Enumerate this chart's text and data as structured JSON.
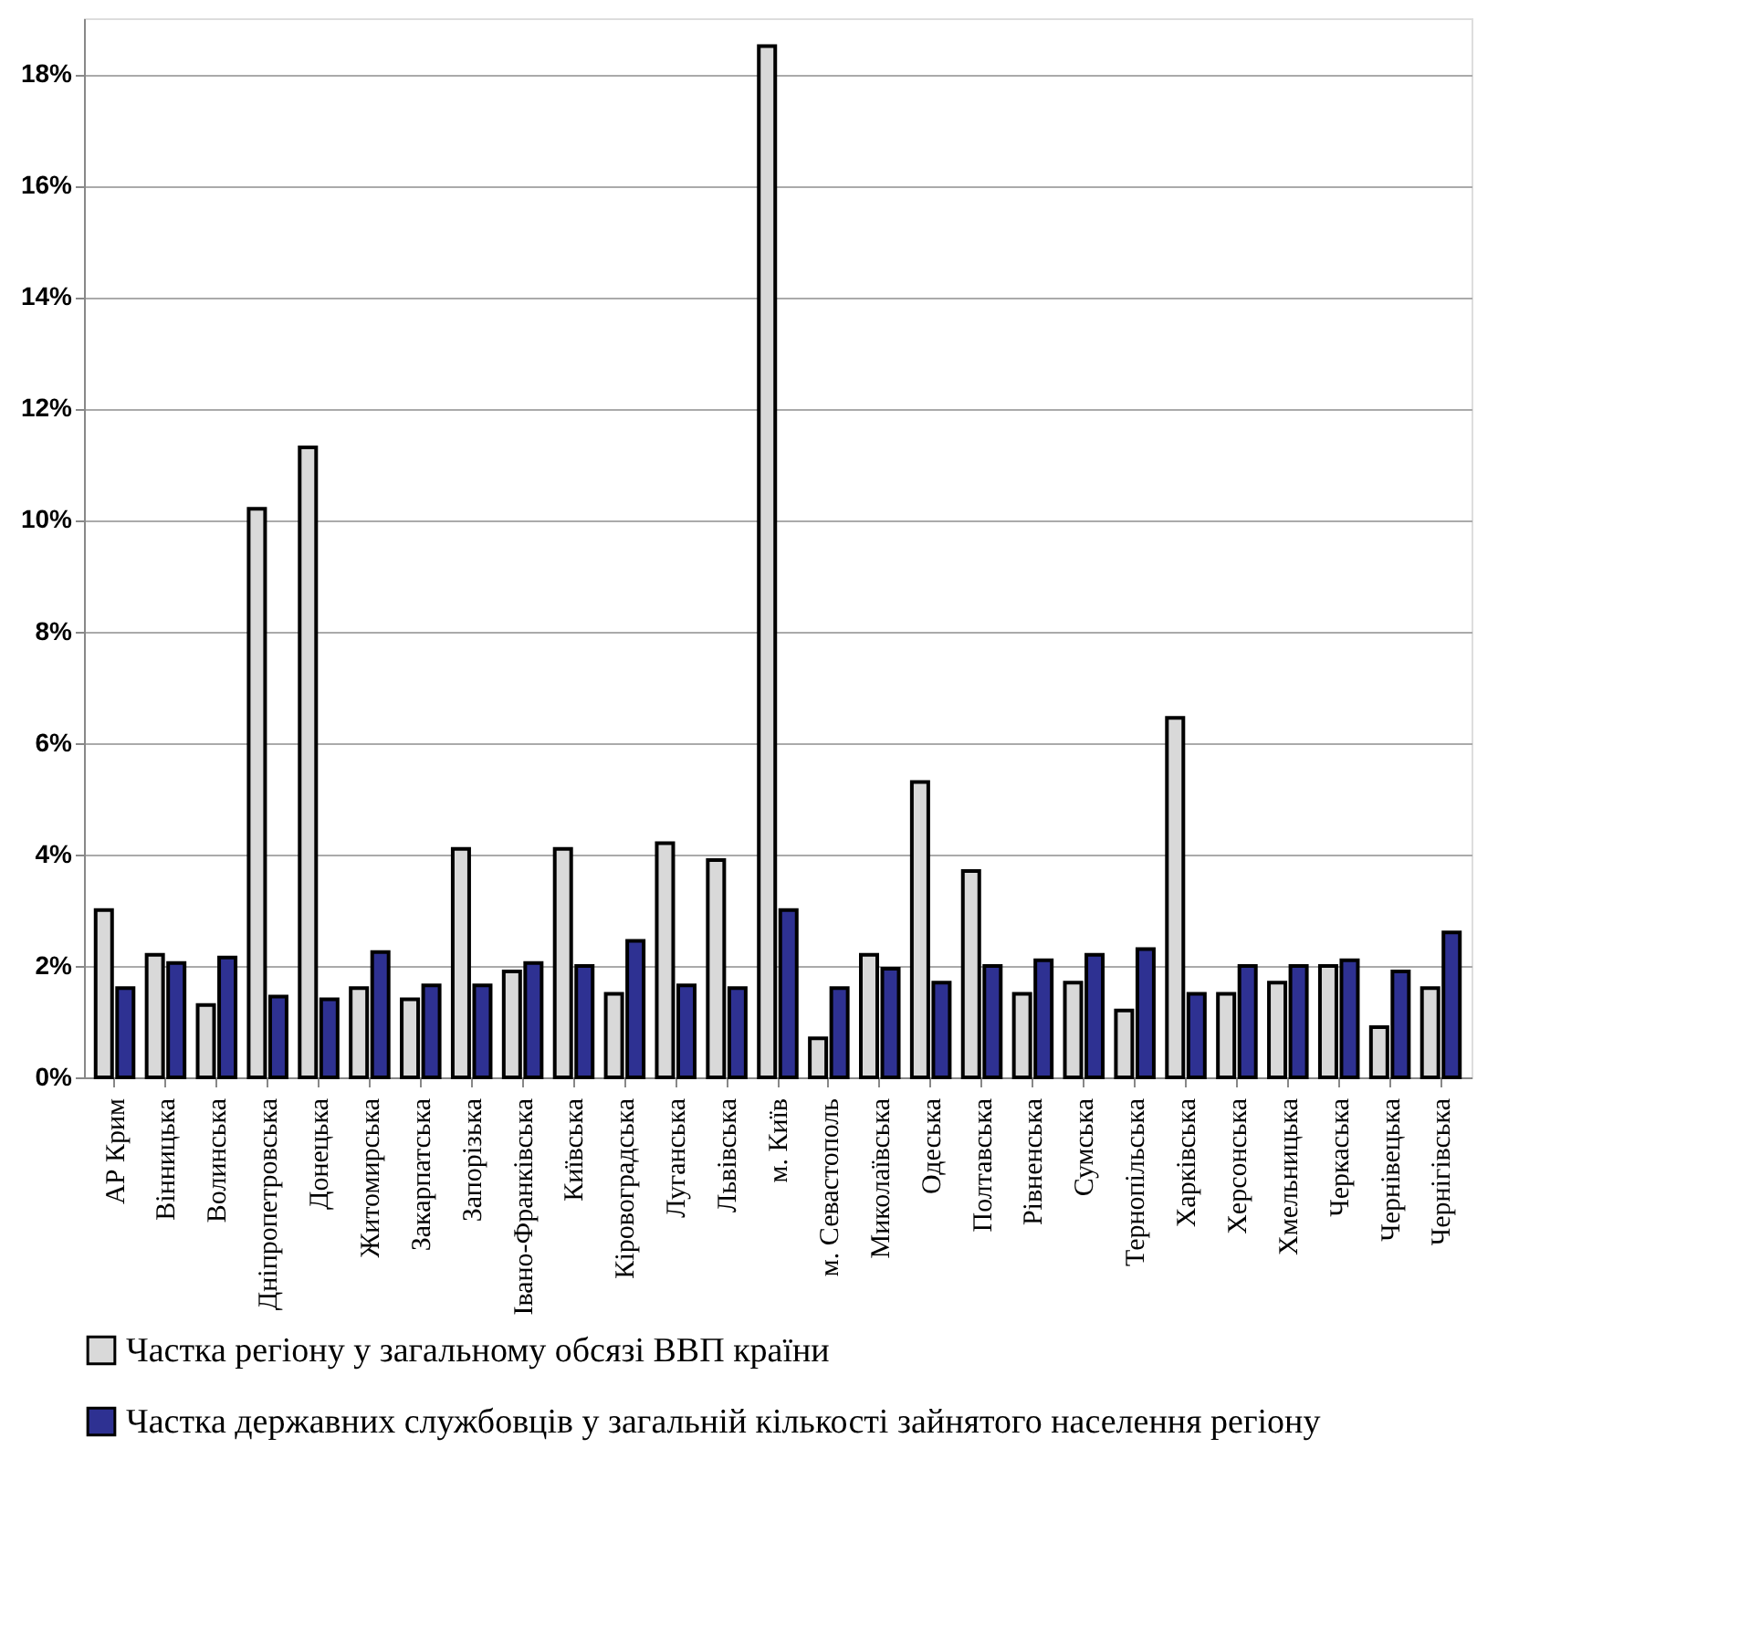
{
  "chart_data": {
    "type": "bar",
    "categories": [
      "АР Крим",
      "Вінницька",
      "Волинська",
      "Дніпропетровська",
      "Донецька",
      "Житомирська",
      "Закарпатська",
      "Запорізька",
      "Івано-Франківська",
      "Київська",
      "Кіровоградська",
      "Луганська",
      "Львівська",
      "м. Київ",
      "м. Севастополь",
      "Миколаївська",
      "Одеська",
      "Полтавська",
      "Рівненська",
      "Сумська",
      "Тернопільська",
      "Харківська",
      "Херсонська",
      "Хмельницька",
      "Черкаська",
      "Чернівецька",
      "Чернігівська"
    ],
    "series": [
      {
        "name": "Частка регіону у загальному обсязі ВВП країни",
        "color": "#d9d9d9",
        "values": [
          3.0,
          2.2,
          1.3,
          10.2,
          11.3,
          1.6,
          1.4,
          4.1,
          1.9,
          4.1,
          1.5,
          4.2,
          3.9,
          18.5,
          0.7,
          2.2,
          5.3,
          3.7,
          1.5,
          1.7,
          1.2,
          6.45,
          1.5,
          1.7,
          2.0,
          0.9,
          1.6
        ]
      },
      {
        "name": "Частка державних службовців у загальній кількості зайнятого населення регіону",
        "color": "#2e3192",
        "values": [
          1.6,
          2.05,
          2.15,
          1.45,
          1.4,
          2.25,
          1.65,
          1.65,
          2.05,
          2.0,
          2.45,
          1.65,
          1.6,
          3.0,
          1.6,
          1.95,
          1.7,
          2.0,
          2.1,
          2.2,
          2.3,
          1.5,
          2.0,
          2.0,
          2.1,
          1.9,
          2.6
        ]
      }
    ],
    "ylim": [
      0,
      19
    ],
    "yticks": [
      {
        "value": 0,
        "label": "0%"
      },
      {
        "value": 2,
        "label": "2%"
      },
      {
        "value": 4,
        "label": "4%"
      },
      {
        "value": 6,
        "label": "6%"
      },
      {
        "value": 8,
        "label": "8%"
      },
      {
        "value": 10,
        "label": "10%"
      },
      {
        "value": 12,
        "label": "12%"
      },
      {
        "value": 14,
        "label": "14%"
      },
      {
        "value": 16,
        "label": "16%"
      },
      {
        "value": 18,
        "label": "18%"
      }
    ],
    "grid": "y",
    "legend": "bottom left"
  }
}
